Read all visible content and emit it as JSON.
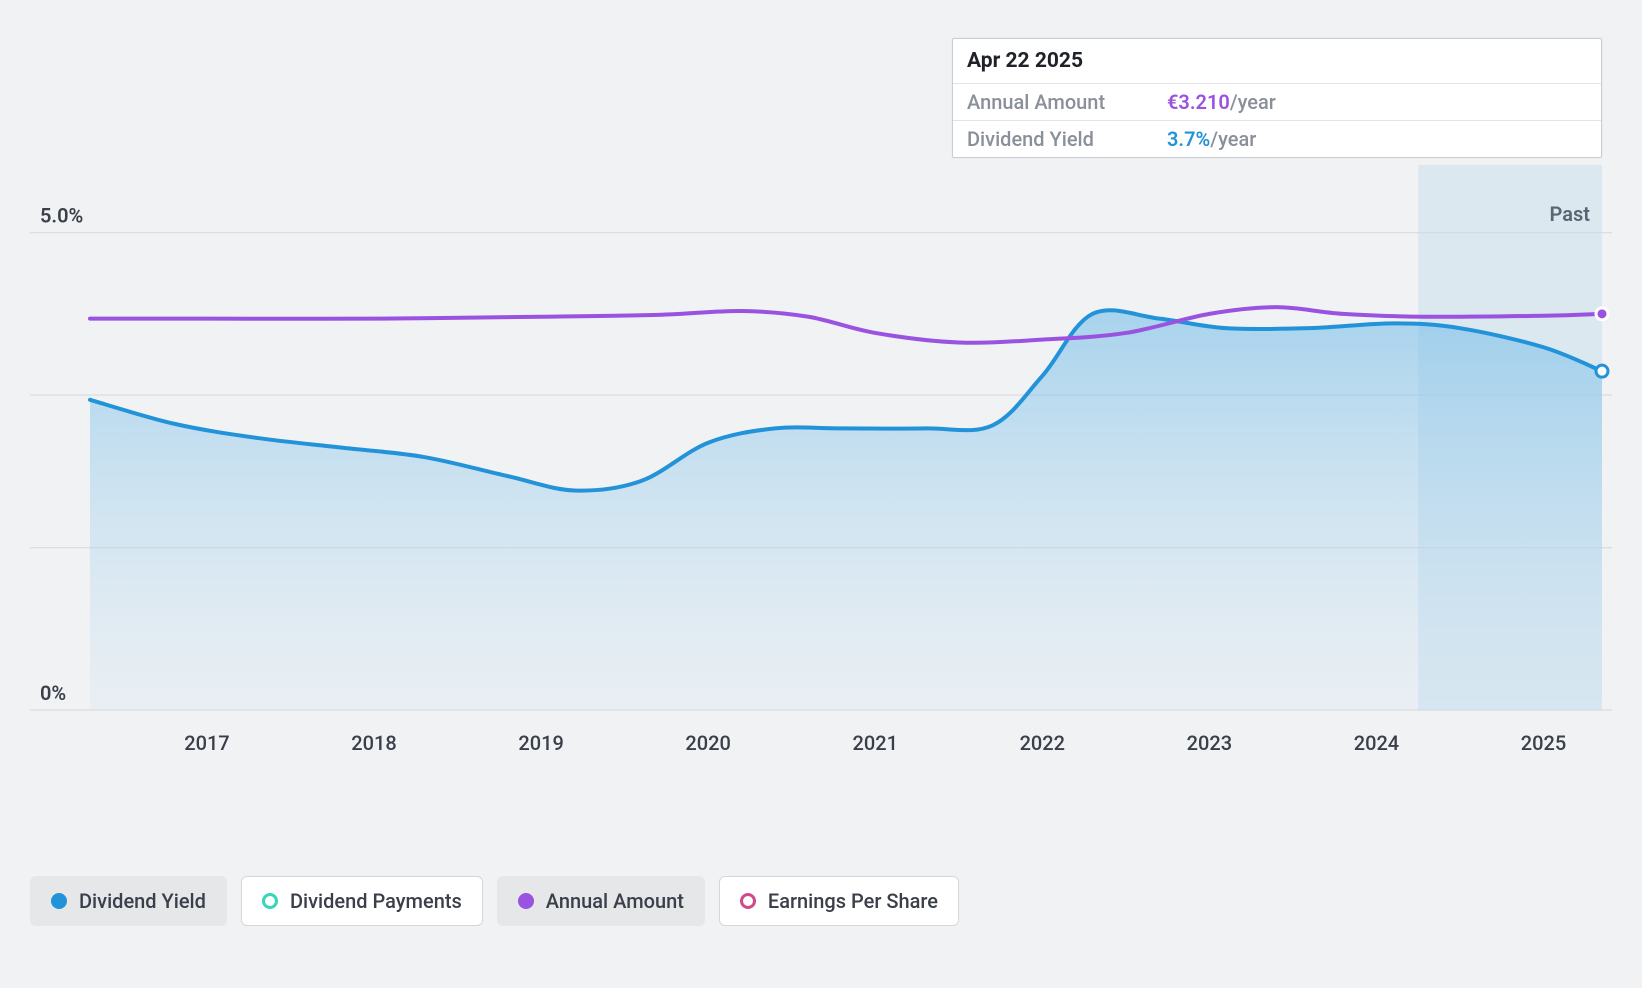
{
  "chart": {
    "type": "line-area",
    "background_color": "#f1f2f3",
    "grid_color": "#d4d7da",
    "y_axis": {
      "min": 0,
      "max": 5.5,
      "tick_at": [
        0,
        5
      ],
      "tick_labels": [
        "0%",
        "5.0%"
      ],
      "label_fontsize": 20
    },
    "x_axis": {
      "years": [
        2017,
        2018,
        2019,
        2020,
        2021,
        2022,
        2023,
        2024,
        2025
      ],
      "start": 2016.3,
      "end": 2025.35,
      "label_fontsize": 20
    },
    "future_region": {
      "from": 2024.25,
      "label": "Past"
    },
    "series": {
      "dividend_yield": {
        "name": "Dividend Yield",
        "color": "#2393d9",
        "area_gradient_top": "rgba(35,147,217,0.45)",
        "area_gradient_bottom": "rgba(35,147,217,0.05)",
        "line_width": 4,
        "points": [
          [
            2016.3,
            3.25
          ],
          [
            2016.8,
            3.0
          ],
          [
            2017.3,
            2.85
          ],
          [
            2017.8,
            2.75
          ],
          [
            2018.3,
            2.65
          ],
          [
            2018.8,
            2.45
          ],
          [
            2019.2,
            2.3
          ],
          [
            2019.6,
            2.4
          ],
          [
            2020.0,
            2.8
          ],
          [
            2020.4,
            2.95
          ],
          [
            2020.8,
            2.95
          ],
          [
            2021.3,
            2.95
          ],
          [
            2021.7,
            2.98
          ],
          [
            2022.0,
            3.5
          ],
          [
            2022.3,
            4.15
          ],
          [
            2022.7,
            4.1
          ],
          [
            2023.1,
            4.0
          ],
          [
            2023.6,
            4.0
          ],
          [
            2024.1,
            4.05
          ],
          [
            2024.5,
            4.0
          ],
          [
            2025.0,
            3.8
          ],
          [
            2025.35,
            3.55
          ]
        ],
        "end_marker": {
          "x": 2025.35,
          "y": 3.55,
          "radius": 6
        }
      },
      "annual_amount": {
        "name": "Annual Amount",
        "color": "#9a52e0",
        "line_width": 4,
        "points": [
          [
            2016.3,
            4.1
          ],
          [
            2017.0,
            4.1
          ],
          [
            2018.0,
            4.1
          ],
          [
            2019.0,
            4.12
          ],
          [
            2019.7,
            4.14
          ],
          [
            2020.2,
            4.18
          ],
          [
            2020.6,
            4.12
          ],
          [
            2021.0,
            3.95
          ],
          [
            2021.5,
            3.85
          ],
          [
            2022.0,
            3.88
          ],
          [
            2022.5,
            3.95
          ],
          [
            2023.0,
            4.15
          ],
          [
            2023.4,
            4.22
          ],
          [
            2023.8,
            4.15
          ],
          [
            2024.3,
            4.12
          ],
          [
            2025.0,
            4.13
          ],
          [
            2025.35,
            4.15
          ]
        ],
        "end_marker": {
          "x": 2025.35,
          "y": 4.15,
          "radius": 6
        }
      }
    }
  },
  "tooltip": {
    "date": "Apr 22 2025",
    "rows": [
      {
        "label": "Annual Amount",
        "value": "€3.210",
        "unit": "/year",
        "color_class": "val-amount"
      },
      {
        "label": "Dividend Yield",
        "value": "3.7%",
        "unit": "/year",
        "color_class": "val-yield"
      }
    ]
  },
  "legend": [
    {
      "label": "Dividend Yield",
      "marker": "marker-filled-blue",
      "active": true
    },
    {
      "label": "Dividend Payments",
      "marker": "marker-ring-teal",
      "active": false
    },
    {
      "label": "Annual Amount",
      "marker": "marker-filled-purple",
      "active": true
    },
    {
      "label": "Earnings Per Share",
      "marker": "marker-ring-magenta",
      "active": false
    }
  ]
}
